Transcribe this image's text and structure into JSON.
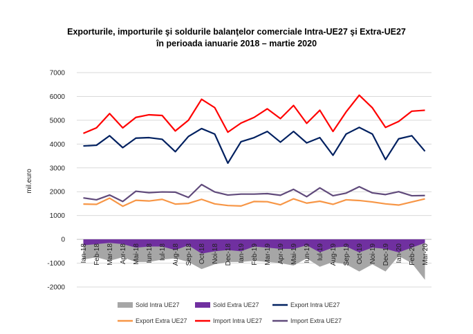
{
  "chart_data": {
    "type": "line",
    "title_line1": "Exporturile, importurile şi soldurile balanţelor comerciale Intra-UE27 şi Extra-UE27",
    "title_line2": "în perioada ianuarie 2018 – martie 2020",
    "ylabel": "mil.euro",
    "xlabel": "",
    "ylim": [
      -2000,
      7000
    ],
    "yticks": [
      -2000,
      -1000,
      0,
      1000,
      2000,
      3000,
      4000,
      5000,
      6000,
      7000
    ],
    "grid": true,
    "legend_position": "bottom",
    "categories": [
      "Ian-18",
      "Feb-18",
      "Mar-18",
      "Apr-18",
      "Mai-18",
      "Iun-18",
      "Iul-18",
      "Aug-18",
      "Sep-18",
      "Oct-18",
      "Noi-18",
      "Dec-18",
      "Ian-19",
      "Feb-19",
      "Mar-19",
      "Apr-19",
      "Mai-19",
      "Iun-19",
      "Iul-19",
      "Aug-19",
      "Sep-19",
      "Oct-19",
      "Noi-19",
      "Dec-19",
      "Ian-20",
      "Feb-20",
      "Mar-20"
    ],
    "series": [
      {
        "name": "Sold Intra UE27",
        "kind": "area",
        "color": "#a6a6a6",
        "values": [
          -850,
          -750,
          -900,
          -750,
          -950,
          -950,
          -850,
          -800,
          -950,
          -1250,
          -1050,
          -950,
          -950,
          -900,
          -950,
          -1000,
          -1100,
          -800,
          -1150,
          -950,
          -1050,
          -1350,
          -1050,
          -1350,
          -700,
          -1000,
          -1700
        ]
      },
      {
        "name": "Sold Extra UE27",
        "kind": "area",
        "color": "#7030a0",
        "values": [
          -250,
          -200,
          -150,
          -200,
          -350,
          -300,
          -300,
          -450,
          -250,
          -600,
          -500,
          -450,
          -500,
          -300,
          -350,
          -400,
          -400,
          -250,
          -550,
          -350,
          -300,
          -550,
          -350,
          -400,
          -550,
          -350,
          -150
        ]
      },
      {
        "name": "Export Intra UE27",
        "kind": "line",
        "color": "#002060",
        "values": [
          3920,
          3950,
          4350,
          3850,
          4250,
          4270,
          4200,
          3680,
          4320,
          4650,
          4420,
          3200,
          4100,
          4270,
          4530,
          4080,
          4530,
          4050,
          4270,
          3530,
          4420,
          4700,
          4420,
          3350,
          4220,
          4350,
          3700
        ]
      },
      {
        "name": "Export Extra UE27",
        "kind": "line",
        "color": "#f79646",
        "values": [
          1480,
          1470,
          1730,
          1390,
          1640,
          1610,
          1680,
          1480,
          1510,
          1680,
          1490,
          1420,
          1400,
          1590,
          1580,
          1450,
          1700,
          1520,
          1600,
          1470,
          1660,
          1630,
          1570,
          1490,
          1440,
          1570,
          1700
        ]
      },
      {
        "name": "Import Intra UE27",
        "kind": "line",
        "color": "#ff0000",
        "values": [
          4450,
          4680,
          5280,
          4680,
          5120,
          5230,
          5200,
          4550,
          5000,
          5880,
          5530,
          4500,
          4880,
          5120,
          5480,
          5070,
          5620,
          4870,
          5420,
          4530,
          5350,
          6050,
          5520,
          4700,
          4950,
          5380,
          5420
        ]
      },
      {
        "name": "Import Extra UE27",
        "kind": "line",
        "color": "#604a7b",
        "values": [
          1740,
          1660,
          1860,
          1590,
          2020,
          1960,
          1990,
          1980,
          1760,
          2300,
          1990,
          1860,
          1900,
          1900,
          1920,
          1850,
          2100,
          1790,
          2160,
          1830,
          1940,
          2210,
          1950,
          1880,
          2000,
          1830,
          1840
        ]
      }
    ]
  }
}
